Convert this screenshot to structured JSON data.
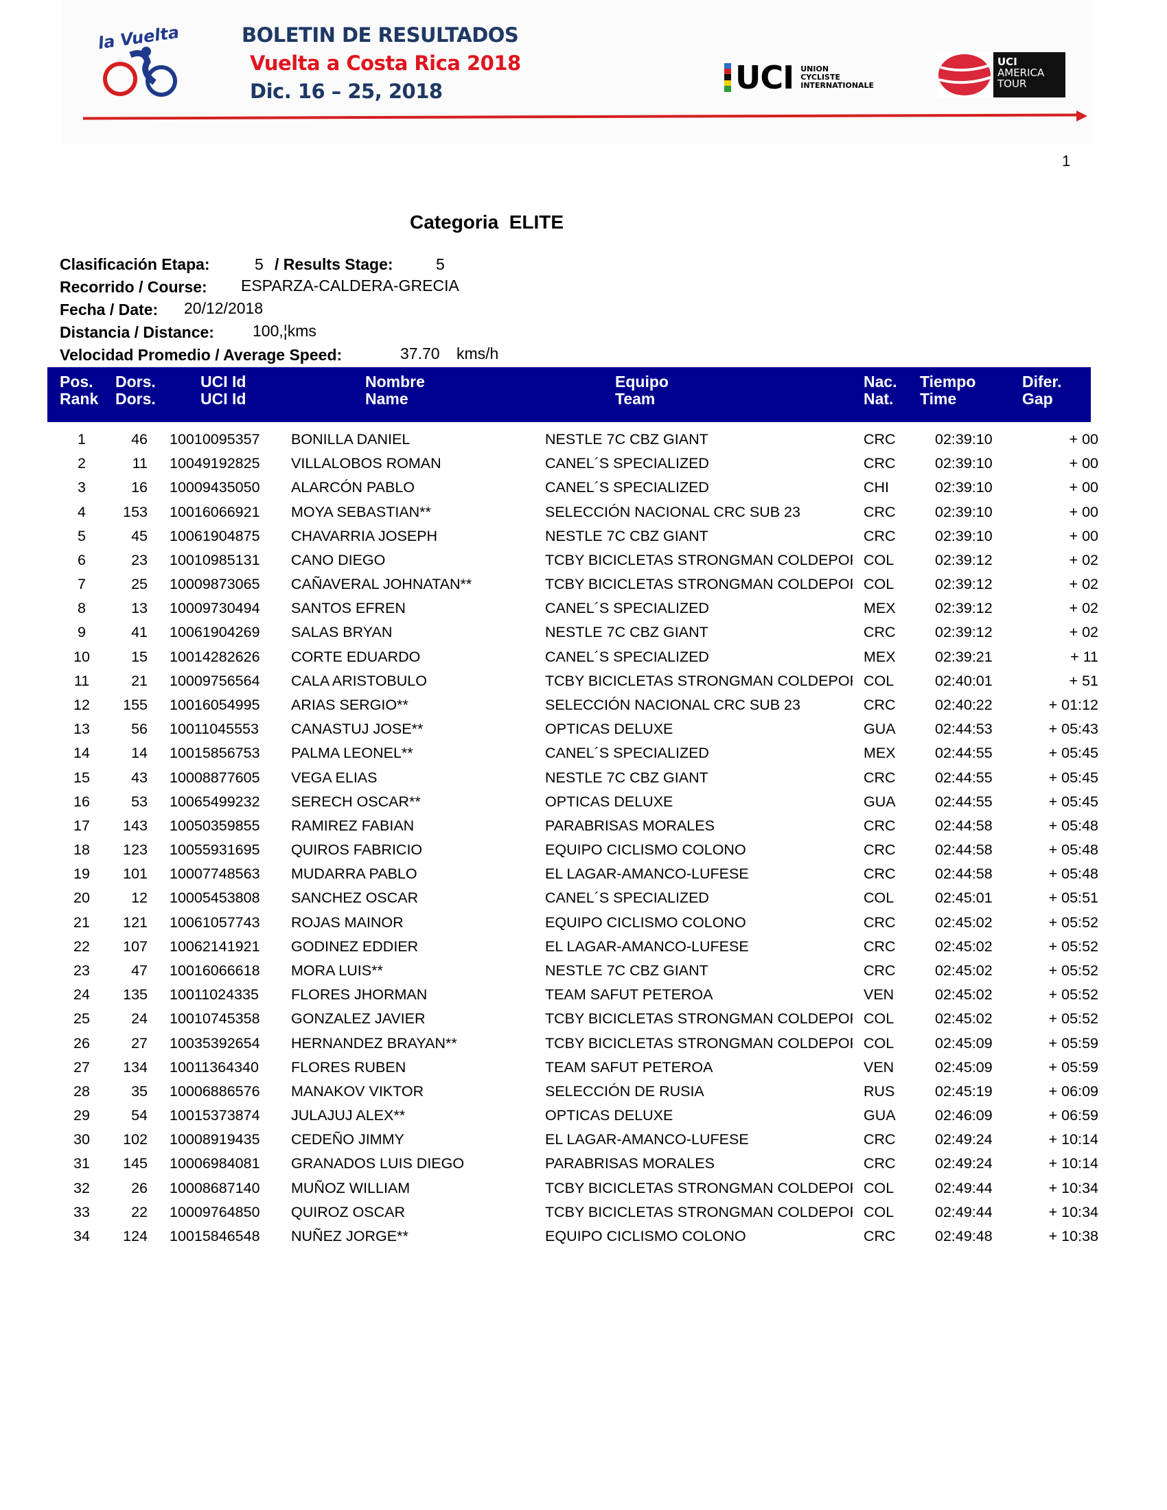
{
  "banner": {
    "title": "BOLETIN DE RESULTADOS",
    "event": "Vuelta a Costa Rica 2018",
    "dates": "Dic. 16 – 25, 2018",
    "logo_vuelta_text": "la Vuelta",
    "uci_logo": {
      "word": "UCI",
      "sub": [
        "UNION",
        "CYCLISTE",
        "INTERNATIONALE"
      ]
    },
    "america_tour_logo": [
      "UCI",
      "AMERICA",
      "TOUR"
    ],
    "colors": {
      "navy": "#1f3864",
      "red": "#e0141e",
      "arrow": "#d42020"
    }
  },
  "page_number": "1",
  "category": {
    "label": "Categoria",
    "value": "ELITE"
  },
  "info": {
    "stage_label": "Clasificación Etapa:",
    "stage_value": "5",
    "results_stage_label": "/ Results Stage:",
    "results_stage_value": "5",
    "course_label": "Recorrido / Course:",
    "course_value": "ESPARZA-CALDERA-GRECIA",
    "date_label": "Fecha / Date:",
    "date_value": "20/12/2018",
    "distance_label": "Distancia / Distance:",
    "distance_value": "100,¦kms",
    "speed_label": "Velocidad Promedio / Average Speed:",
    "speed_value": "37.70",
    "speed_unit": "kms/h"
  },
  "table": {
    "header_color": "#000090",
    "columns": [
      {
        "es": "Pos.",
        "en": "Rank"
      },
      {
        "es": "Dors.",
        "en": "Dors."
      },
      {
        "es": "UCI Id",
        "en": "UCI Id"
      },
      {
        "es": "Nombre",
        "en": "Name"
      },
      {
        "es": "Equipo",
        "en": "Team"
      },
      {
        "es": "Nac.",
        "en": "Nat."
      },
      {
        "es": "Tiempo",
        "en": "Time"
      },
      {
        "es": "Difer.",
        "en": "Gap"
      }
    ],
    "rows": [
      [
        "1",
        "46",
        "10010095357",
        "BONILLA DANIEL",
        "NESTLE 7C CBZ GIANT",
        "CRC",
        "02:39:10",
        "+ 00"
      ],
      [
        "2",
        "11",
        "10049192825",
        "VILLALOBOS  ROMAN",
        "CANEL´S SPECIALIZED",
        "CRC",
        "02:39:10",
        "+ 00"
      ],
      [
        "3",
        "16",
        "10009435050",
        "ALARCÓN  PABLO",
        "CANEL´S SPECIALIZED",
        "CHI",
        "02:39:10",
        "+ 00"
      ],
      [
        "4",
        "153",
        "10016066921",
        "MOYA SEBASTIAN**",
        "SELECCIÓN NACIONAL CRC SUB 23",
        "CRC",
        "02:39:10",
        "+ 00"
      ],
      [
        "5",
        "45",
        "10061904875",
        "CHAVARRIA JOSEPH",
        "NESTLE 7C CBZ GIANT",
        "CRC",
        "02:39:10",
        "+ 00"
      ],
      [
        "6",
        "23",
        "10010985131",
        "CANO DIEGO",
        "TCBY BICICLETAS STRONGMAN COLDEPORTES",
        "COL",
        "02:39:12",
        "+ 02"
      ],
      [
        "7",
        "25",
        "10009873065",
        "CAÑAVERAL JOHNATAN**",
        "TCBY BICICLETAS STRONGMAN COLDEPORTES",
        "COL",
        "02:39:12",
        "+ 02"
      ],
      [
        "8",
        "13",
        "10009730494",
        "SANTOS  EFREN",
        "CANEL´S SPECIALIZED",
        "MEX",
        "02:39:12",
        "+ 02"
      ],
      [
        "9",
        "41",
        "10061904269",
        "SALAS BRYAN",
        "NESTLE 7C CBZ GIANT",
        "CRC",
        "02:39:12",
        "+ 02"
      ],
      [
        "10",
        "15",
        "10014282626",
        "CORTE  EDUARDO",
        "CANEL´S SPECIALIZED",
        "MEX",
        "02:39:21",
        "+ 11"
      ],
      [
        "11",
        "21",
        "10009756564",
        "CALA ARISTOBULO",
        "TCBY BICICLETAS STRONGMAN COLDEPORTES",
        "COL",
        "02:40:01",
        "+ 51"
      ],
      [
        "12",
        "155",
        "10016054995",
        "ARIAS SERGIO**",
        "SELECCIÓN NACIONAL CRC SUB 23",
        "CRC",
        "02:40:22",
        "+ 01:12"
      ],
      [
        "13",
        "56",
        "10011045553",
        "CANASTUJ JOSE**",
        "OPTICAS DELUXE",
        "GUA",
        "02:44:53",
        "+ 05:43"
      ],
      [
        "14",
        "14",
        "10015856753",
        "PALMA  LEONEL**",
        "CANEL´S SPECIALIZED",
        "MEX",
        "02:44:55",
        "+ 05:45"
      ],
      [
        "15",
        "43",
        "10008877605",
        "VEGA ELIAS",
        "NESTLE 7C CBZ GIANT",
        "CRC",
        "02:44:55",
        "+ 05:45"
      ],
      [
        "16",
        "53",
        "10065499232",
        "SERECH OSCAR**",
        "OPTICAS DELUXE",
        "GUA",
        "02:44:55",
        "+ 05:45"
      ],
      [
        "17",
        "143",
        "10050359855",
        "RAMIREZ FABIAN",
        "PARABRISAS MORALES",
        "CRC",
        "02:44:58",
        "+ 05:48"
      ],
      [
        "18",
        "123",
        "10055931695",
        "QUIROS  FABRICIO",
        "EQUIPO CICLISMO COLONO",
        "CRC",
        "02:44:58",
        "+ 05:48"
      ],
      [
        "19",
        "101",
        "10007748563",
        "MUDARRA   PABLO",
        "EL LAGAR-AMANCO-LUFESE",
        "CRC",
        "02:44:58",
        "+ 05:48"
      ],
      [
        "20",
        "12",
        "10005453808",
        "SANCHEZ  OSCAR",
        "CANEL´S SPECIALIZED",
        "COL",
        "02:45:01",
        "+ 05:51"
      ],
      [
        "21",
        "121",
        "10061057743",
        "ROJAS MAINOR",
        "EQUIPO CICLISMO COLONO",
        "CRC",
        "02:45:02",
        "+ 05:52"
      ],
      [
        "22",
        "107",
        "10062141921",
        "GODINEZ  EDDIER",
        "EL LAGAR-AMANCO-LUFESE",
        "CRC",
        "02:45:02",
        "+ 05:52"
      ],
      [
        "23",
        "47",
        "10016066618",
        "MORA LUIS**",
        "NESTLE 7C CBZ GIANT",
        "CRC",
        "02:45:02",
        "+ 05:52"
      ],
      [
        "24",
        "135",
        "10011024335",
        "FLORES JHORMAN",
        "TEAM SAFUT PETEROA",
        "VEN",
        "02:45:02",
        "+ 05:52"
      ],
      [
        "25",
        "24",
        "10010745358",
        "GONZALEZ  JAVIER",
        "TCBY BICICLETAS STRONGMAN COLDEPORTES",
        "COL",
        "02:45:02",
        "+ 05:52"
      ],
      [
        "26",
        "27",
        "10035392654",
        "HERNANDEZ BRAYAN**",
        "TCBY BICICLETAS STRONGMAN COLDEPORTES",
        "COL",
        "02:45:09",
        "+ 05:59"
      ],
      [
        "27",
        "134",
        "10011364340",
        "FLORES  RUBEN",
        "TEAM SAFUT PETEROA",
        "VEN",
        "02:45:09",
        "+ 05:59"
      ],
      [
        "28",
        "35",
        "10006886576",
        "MANAKOV VIKTOR",
        "SELECCIÓN DE RUSIA",
        "RUS",
        "02:45:19",
        "+ 06:09"
      ],
      [
        "29",
        "54",
        "10015373874",
        "JULAJUJ ALEX**",
        "OPTICAS DELUXE",
        "GUA",
        "02:46:09",
        "+ 06:59"
      ],
      [
        "30",
        "102",
        "10008919435",
        "CEDEÑO  JIMMY",
        "EL LAGAR-AMANCO-LUFESE",
        "CRC",
        "02:49:24",
        "+ 10:14"
      ],
      [
        "31",
        "145",
        "10006984081",
        "GRANADOS  LUIS DIEGO",
        "PARABRISAS MORALES",
        "CRC",
        "02:49:24",
        "+ 10:14"
      ],
      [
        "32",
        "26",
        "10008687140",
        "MUÑOZ WILLIAM",
        "TCBY BICICLETAS STRONGMAN COLDEPORTES",
        "COL",
        "02:49:44",
        "+ 10:34"
      ],
      [
        "33",
        "22",
        "10009764850",
        "QUIROZ OSCAR",
        "TCBY BICICLETAS STRONGMAN COLDEPORTES",
        "COL",
        "02:49:44",
        "+ 10:34"
      ],
      [
        "34",
        "124",
        "10015846548",
        "NUÑEZ  JORGE**",
        "EQUIPO CICLISMO COLONO",
        "CRC",
        "02:49:48",
        "+ 10:38"
      ]
    ]
  }
}
